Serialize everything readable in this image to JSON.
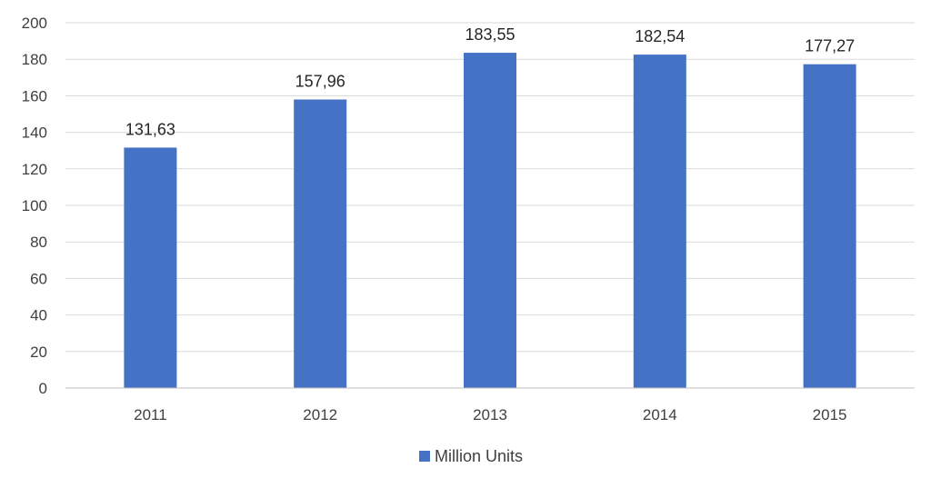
{
  "chart_data": {
    "type": "bar",
    "categories": [
      "2011",
      "2012",
      "2013",
      "2014",
      "2015"
    ],
    "series": [
      {
        "name": "Million Units",
        "values": [
          131.63,
          157.96,
          183.55,
          182.54,
          177.27
        ],
        "value_labels": [
          "131,63",
          "157,96",
          "183,55",
          "182,54",
          "177,27"
        ],
        "color": "#4472c4"
      }
    ],
    "title": "",
    "xlabel": "",
    "ylabel": "",
    "ylim": [
      0,
      200
    ],
    "yticks": [
      0,
      20,
      40,
      60,
      80,
      100,
      120,
      140,
      160,
      180,
      200
    ],
    "ytick_labels": [
      "0",
      "20",
      "40",
      "60",
      "80",
      "100",
      "120",
      "140",
      "160",
      "180",
      "200"
    ],
    "grid": true,
    "legend": {
      "placement": "bottom",
      "entries": [
        "Million Units"
      ]
    }
  },
  "colors": {
    "bar": "#4472c4",
    "grid": "#d9d9d9",
    "axis": "#bfbfbf",
    "text": "#404040"
  }
}
